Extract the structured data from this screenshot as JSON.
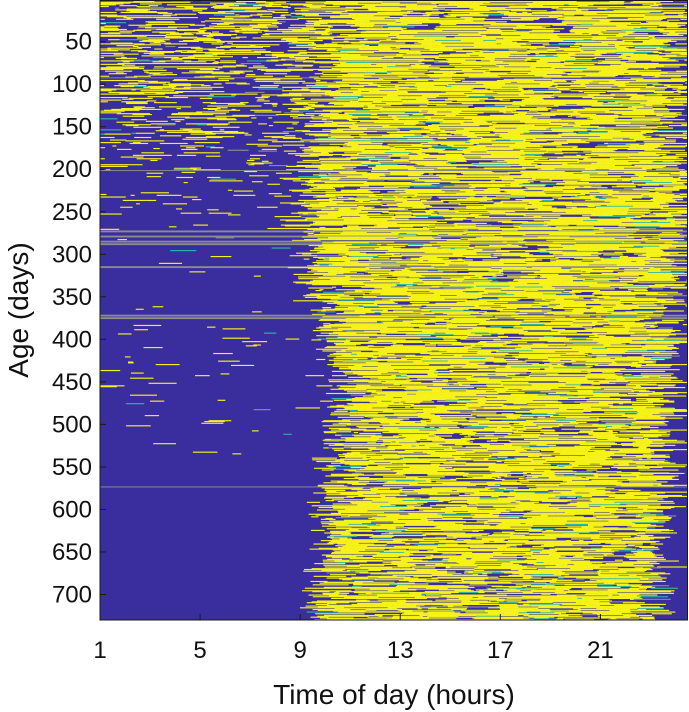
{
  "chart_data": {
    "type": "heatmap",
    "title": "",
    "xlabel": "Time of day (hours)",
    "ylabel": "Age (days)",
    "xlim": [
      1,
      24.5
    ],
    "ylim": [
      1,
      730
    ],
    "x_ticks": [
      1,
      5,
      9,
      13,
      17,
      21
    ],
    "y_ticks": [
      50,
      100,
      150,
      200,
      250,
      300,
      350,
      400,
      450,
      500,
      550,
      600,
      650,
      700
    ],
    "y_direction": "reversed",
    "grid": false,
    "legend": "none",
    "colormap": {
      "low": "#3a2d9e",
      "mid": "#2fb3a8",
      "high": "#f7f318",
      "missing": "#8c8c8c"
    },
    "summary_profile": [
      {
        "age": 1,
        "activity_onset_hour": 9.0,
        "activity_offset_hour": 23.5,
        "night_activity": 0.45
      },
      {
        "age": 100,
        "activity_onset_hour": 9.5,
        "activity_offset_hour": 23.5,
        "night_activity": 0.3
      },
      {
        "age": 200,
        "activity_onset_hour": 9.0,
        "activity_offset_hour": 23.7,
        "night_activity": 0.1
      },
      {
        "age": 260,
        "activity_onset_hour": 8.6,
        "activity_offset_hour": 24.0,
        "night_activity": 0.02
      },
      {
        "age": 350,
        "activity_onset_hour": 9.2,
        "activity_offset_hour": 23.5,
        "night_activity": 0.01
      },
      {
        "age": 450,
        "activity_onset_hour": 10.5,
        "activity_offset_hour": 23.2,
        "night_activity": 0.02
      },
      {
        "age": 550,
        "activity_onset_hour": 9.8,
        "activity_offset_hour": 23.2,
        "night_activity": 0.0
      },
      {
        "age": 650,
        "activity_onset_hour": 9.6,
        "activity_offset_hour": 23.0,
        "night_activity": 0.0
      },
      {
        "age": 730,
        "activity_onset_hour": 9.2,
        "activity_offset_hour": 23.0,
        "night_activity": 0.0
      }
    ],
    "missing_rows": [
      272,
      278,
      284,
      287,
      314,
      371,
      374
    ]
  }
}
